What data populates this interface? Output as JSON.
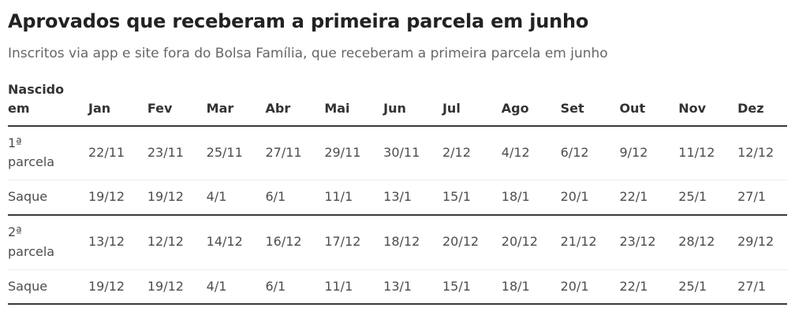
{
  "header": {
    "title": "Aprovados que receberam a primeira parcela em junho",
    "subtitle": "Inscritos via app e site fora do Bolsa Família, que receberam a primeira parcela em junho"
  },
  "table": {
    "row_header_label": "Nascido em",
    "columns": [
      "Jan",
      "Fev",
      "Mar",
      "Abr",
      "Mai",
      "Jun",
      "Jul",
      "Ago",
      "Set",
      "Out",
      "Nov",
      "Dez"
    ],
    "rows": [
      {
        "label": "1ª parcela",
        "values": [
          "22/11",
          "23/11",
          "25/11",
          "27/11",
          "29/11",
          "30/11",
          "2/12",
          "4/12",
          "6/12",
          "9/12",
          "11/12",
          "12/12"
        ],
        "divider_after": "light"
      },
      {
        "label": "Saque",
        "values": [
          "19/12",
          "19/12",
          "4/1",
          "6/1",
          "11/1",
          "13/1",
          "15/1",
          "18/1",
          "20/1",
          "22/1",
          "25/1",
          "27/1"
        ],
        "divider_after": "dark"
      },
      {
        "label": "2ª parcela",
        "values": [
          "13/12",
          "12/12",
          "14/12",
          "16/12",
          "17/12",
          "18/12",
          "20/12",
          "20/12",
          "21/12",
          "23/12",
          "28/12",
          "29/12"
        ],
        "divider_after": "light"
      },
      {
        "label": "Saque",
        "values": [
          "19/12",
          "19/12",
          "4/1",
          "6/1",
          "11/1",
          "13/1",
          "15/1",
          "18/1",
          "20/1",
          "22/1",
          "25/1",
          "27/1"
        ],
        "divider_after": "dark"
      }
    ]
  },
  "colors": {
    "background": "#ffffff",
    "title_text": "#222222",
    "subtitle_text": "#666666",
    "header_text": "#333333",
    "cell_text": "#4d4d4d",
    "divider_dark": "#3a3a3a",
    "divider_light": "#ededed"
  },
  "chart_data": {
    "type": "table",
    "title": "Aprovados que receberam a primeira parcela em junho",
    "subtitle": "Inscritos via app e site fora do Bolsa Família, que receberam a primeira parcela em junho",
    "columns": [
      "Nascido em",
      "Jan",
      "Fev",
      "Mar",
      "Abr",
      "Mai",
      "Jun",
      "Jul",
      "Ago",
      "Set",
      "Out",
      "Nov",
      "Dez"
    ],
    "rows": [
      [
        "1ª parcela",
        "22/11",
        "23/11",
        "25/11",
        "27/11",
        "29/11",
        "30/11",
        "2/12",
        "4/12",
        "6/12",
        "9/12",
        "11/12",
        "12/12"
      ],
      [
        "Saque",
        "19/12",
        "19/12",
        "4/1",
        "6/1",
        "11/1",
        "13/1",
        "15/1",
        "18/1",
        "20/1",
        "22/1",
        "25/1",
        "27/1"
      ],
      [
        "2ª parcela",
        "13/12",
        "12/12",
        "14/12",
        "16/12",
        "17/12",
        "18/12",
        "20/12",
        "20/12",
        "21/12",
        "23/12",
        "28/12",
        "29/12"
      ],
      [
        "Saque",
        "19/12",
        "19/12",
        "4/1",
        "6/1",
        "11/1",
        "13/1",
        "15/1",
        "18/1",
        "20/1",
        "22/1",
        "25/1",
        "27/1"
      ]
    ],
    "layout": {
      "grid": "horizontal-rules-only",
      "group_separators": "thick rule under header, after each Saque row",
      "alignment": "left"
    }
  }
}
